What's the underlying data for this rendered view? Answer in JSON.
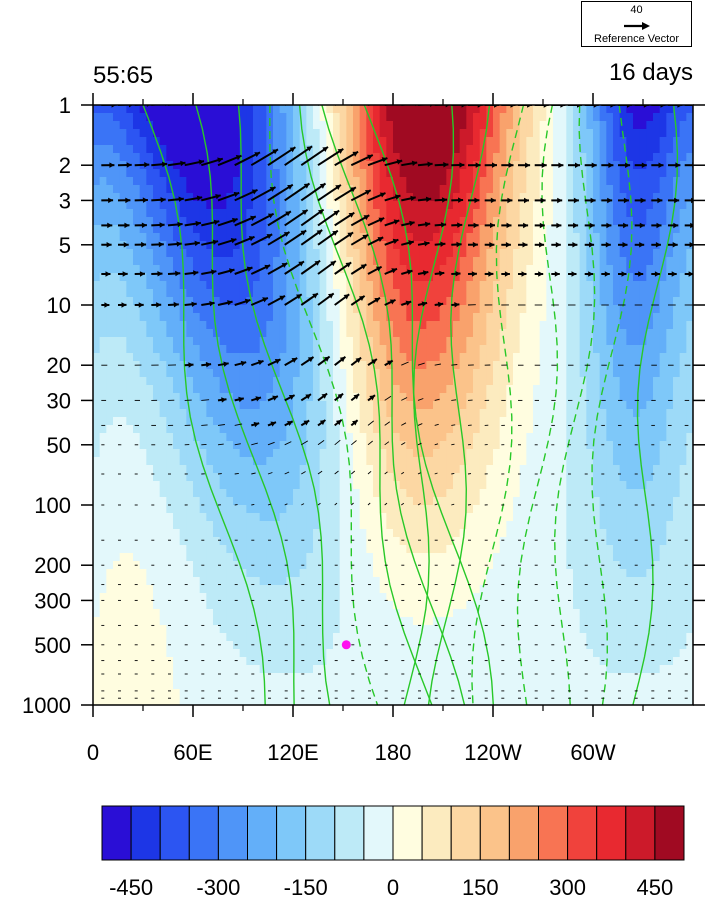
{
  "chart_data": {
    "type": "heatmap",
    "title_left": "55:65",
    "title_right": "16 days",
    "xlabel": "",
    "ylabel": "",
    "x_ticks": [
      "0",
      "60E",
      "120E",
      "180",
      "120W",
      "60W"
    ],
    "x_tick_lon": [
      0,
      60,
      120,
      180,
      240,
      300
    ],
    "xlim": [
      0,
      360
    ],
    "y_scale": "log",
    "y_ticks": [
      "1",
      "2",
      "3",
      "5",
      "10",
      "20",
      "30",
      "50",
      "100",
      "200",
      "300",
      "500",
      "1000"
    ],
    "ylim": [
      1000,
      1
    ],
    "colorbar": {
      "levels": [
        -500,
        -450,
        -400,
        -350,
        -300,
        -250,
        -200,
        -150,
        -100,
        -50,
        0,
        50,
        100,
        150,
        200,
        250,
        300,
        350,
        400,
        450,
        500
      ],
      "tick_labels": [
        "-450",
        "-300",
        "-150",
        "0",
        "150",
        "300",
        "450"
      ],
      "tick_values": [
        -450,
        -300,
        -150,
        0,
        150,
        300,
        450
      ],
      "colors": [
        "#2a0ed6",
        "#1d36e6",
        "#2c55f2",
        "#3a74f6",
        "#4f95f8",
        "#63aff9",
        "#7ec8f9",
        "#9ddaf8",
        "#bdeaf7",
        "#e3f8fb",
        "#fffde0",
        "#fcebbf",
        "#fcd7a3",
        "#fbc38a",
        "#f9a26c",
        "#f87453",
        "#f0423c",
        "#e82930",
        "#cc1a2a",
        "#a00a22"
      ]
    },
    "reference_vector": {
      "magnitude": "40",
      "label": "Reference Vector"
    },
    "marker": {
      "lon": 152,
      "pressure": 500,
      "color": "#ff10f0"
    },
    "contour_line_color": "#28c828"
  }
}
